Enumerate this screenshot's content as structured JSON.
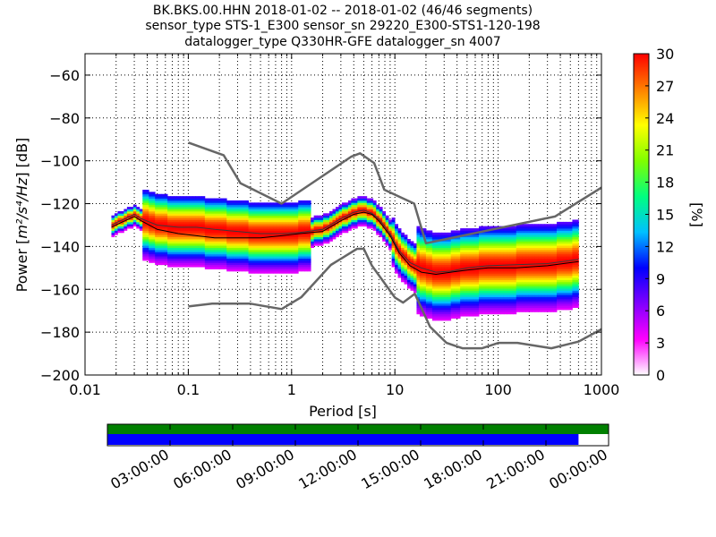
{
  "chart_data": {
    "type": "heatmap",
    "title": [
      "BK.BKS.00.HHN   2018-01-02 -- 2018-01-02  (46/46 segments)",
      "sensor_type STS-1_E300 sensor_sn 29220_E300-STS1-120-198",
      "datalogger_type Q330HR-GFE datalogger_sn 4007"
    ],
    "xlabel": "Period [s]",
    "ylabel_prefix": "Power [",
    "ylabel_suffix": "] [dB]",
    "ylabel_units": "m²/s⁴/Hz",
    "x_scale": "log",
    "xlim": [
      0.01,
      1000
    ],
    "ylim": [
      -200,
      -50
    ],
    "x_ticks": [
      {
        "value": 0.01,
        "label": "0.01"
      },
      {
        "value": 0.1,
        "label": "0.1"
      },
      {
        "value": 1,
        "label": "1"
      },
      {
        "value": 10,
        "label": "10"
      },
      {
        "value": 100,
        "label": "100"
      },
      {
        "value": 1000,
        "label": "1000"
      }
    ],
    "y_ticks": [
      {
        "value": -60,
        "label": "−60"
      },
      {
        "value": -80,
        "label": "−80"
      },
      {
        "value": -100,
        "label": "−100"
      },
      {
        "value": -120,
        "label": "−120"
      },
      {
        "value": -140,
        "label": "−140"
      },
      {
        "value": -160,
        "label": "−160"
      },
      {
        "value": -180,
        "label": "−180"
      },
      {
        "value": -200,
        "label": "−200"
      }
    ],
    "grid": true,
    "colorbar": {
      "label": "[%]",
      "min": 0,
      "max": 30,
      "ticks": [
        {
          "value": 0,
          "label": "0"
        },
        {
          "value": 3,
          "label": "3"
        },
        {
          "value": 6,
          "label": "6"
        },
        {
          "value": 9,
          "label": "9"
        },
        {
          "value": 12,
          "label": "12"
        },
        {
          "value": 15,
          "label": "15"
        },
        {
          "value": 18,
          "label": "18"
        },
        {
          "value": 21,
          "label": "21"
        },
        {
          "value": 24,
          "label": "24"
        },
        {
          "value": 27,
          "label": "27"
        },
        {
          "value": 30,
          "label": "30"
        }
      ],
      "colors": [
        "#ffffff",
        "#ff00ff",
        "#8000ff",
        "#0000ff",
        "#00c0ff",
        "#00ff80",
        "#80ff00",
        "#ffff00",
        "#ff8000",
        "#ff0000"
      ]
    },
    "nhnm": {
      "period": [
        0.1,
        0.22,
        0.32,
        0.8,
        3.8,
        4.6,
        6.3,
        7.9,
        15.4,
        20,
        354.8,
        1000
      ],
      "power": [
        -91.5,
        -97.4,
        -110.5,
        -120,
        -98,
        -96.5,
        -101,
        -113.5,
        -120,
        -138.5,
        -126,
        -112.5
      ]
    },
    "nlnm": {
      "period": [
        0.1,
        0.17,
        0.4,
        0.8,
        1.24,
        2.4,
        4.3,
        5,
        6,
        10,
        12,
        15.6,
        21.9,
        31.6,
        45,
        70,
        101,
        154,
        328,
        600,
        1000
      ],
      "power": [
        -168,
        -166.7,
        -166.7,
        -169.2,
        -163.7,
        -148.6,
        -141.1,
        -141.1,
        -149,
        -163.8,
        -166.2,
        -162.1,
        -177.5,
        -185,
        -187.5,
        -187.5,
        -185,
        -185,
        -187.5,
        -184.4,
        -178.6
      ]
    },
    "mean_psd": {
      "period": [
        0.018,
        0.022,
        0.03,
        0.035,
        0.05,
        0.08,
        0.12,
        0.18,
        0.3,
        0.5,
        0.8,
        1.2,
        2,
        3,
        4,
        5,
        6,
        7,
        9,
        11,
        14,
        18,
        25,
        35,
        50,
        80,
        150,
        300,
        600
      ],
      "power": [
        -130,
        -128,
        -125,
        -127,
        -130,
        -131,
        -131,
        -132,
        -133,
        -134,
        -134,
        -133.5,
        -132,
        -127,
        -124,
        -123,
        -124.5,
        -127,
        -134,
        -142,
        -147.5,
        -150,
        -152,
        -151.5,
        -150,
        -149,
        -148.5,
        -148,
        -146
      ]
    },
    "mode_psd": {
      "period": [
        0.018,
        0.022,
        0.03,
        0.035,
        0.05,
        0.08,
        0.12,
        0.18,
        0.3,
        0.5,
        0.8,
        1.2,
        2,
        3,
        4,
        5,
        6,
        7,
        9,
        11,
        14,
        18,
        25,
        35,
        50,
        80,
        150,
        300,
        600
      ],
      "power": [
        -131,
        -129,
        -126,
        -128,
        -132,
        -134,
        -135,
        -136,
        -136,
        -136,
        -135,
        -134,
        -133,
        -128,
        -125,
        -124,
        -125,
        -128,
        -135,
        -143,
        -149,
        -152,
        -153,
        -152,
        -151,
        -150,
        -150,
        -149,
        -147
      ]
    },
    "timeline": {
      "start": "2018-01-02T00:00:00",
      "end": "2018-01-03T00:00:00",
      "tick_labels": [
        "03:00:00",
        "06:00:00",
        "09:00:00",
        "12:00:00",
        "15:00:00",
        "18:00:00",
        "21:00:00",
        "00:00:00"
      ],
      "data_coverage": [
        0,
        1
      ],
      "psd_coverage": [
        0,
        0.94
      ],
      "data_color": "#008000",
      "psd_color": "#0000ff"
    }
  }
}
